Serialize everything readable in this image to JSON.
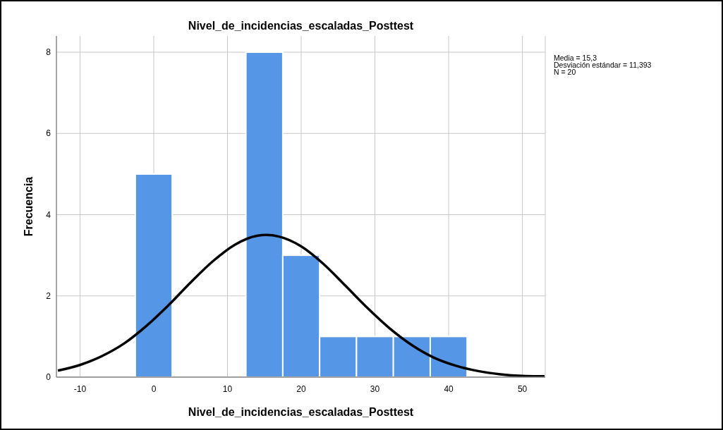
{
  "chart_data": {
    "type": "histogram",
    "title": "Nivel_de_incidencias_escaladas_Posttest",
    "xlabel": "Nivel_de_incidencias_escaladas_Posttest",
    "ylabel": "Frecuencia",
    "bins": [
      -2.5,
      2.5,
      7.5,
      12.5,
      17.5,
      22.5,
      27.5,
      32.5,
      37.5,
      42.5
    ],
    "series": [
      {
        "color": "#5596e6",
        "values": [
          5,
          0,
          0,
          8,
          3,
          1,
          1,
          1,
          1
        ]
      },
      {
        "type": "line",
        "color": "#000000",
        "x": [
          -13,
          -10,
          -7,
          -4,
          -1,
          2,
          5,
          8,
          11,
          14,
          15.3,
          17,
          20,
          23,
          26,
          29,
          32,
          35,
          38,
          41,
          44,
          47,
          50,
          53
        ],
        "values": [
          0.16,
          0.3,
          0.52,
          0.83,
          1.26,
          1.77,
          2.33,
          2.85,
          3.26,
          3.48,
          3.5,
          3.46,
          3.22,
          2.79,
          2.25,
          1.7,
          1.2,
          0.79,
          0.48,
          0.28,
          0.15,
          0.07,
          0.03,
          0.02
        ]
      }
    ],
    "xlim": [
      -13.2,
      53.1
    ],
    "xticks": [
      -10,
      0,
      10,
      20,
      30,
      40,
      50
    ],
    "ylim": [
      0,
      8.4
    ],
    "yticks": [
      0,
      2,
      4,
      6,
      8
    ],
    "grid": true,
    "line_style": "solid",
    "marker": "none",
    "annotations": [
      "Media = 15,3",
      "Desviación estándar = 11,393",
      "N = 20"
    ]
  }
}
